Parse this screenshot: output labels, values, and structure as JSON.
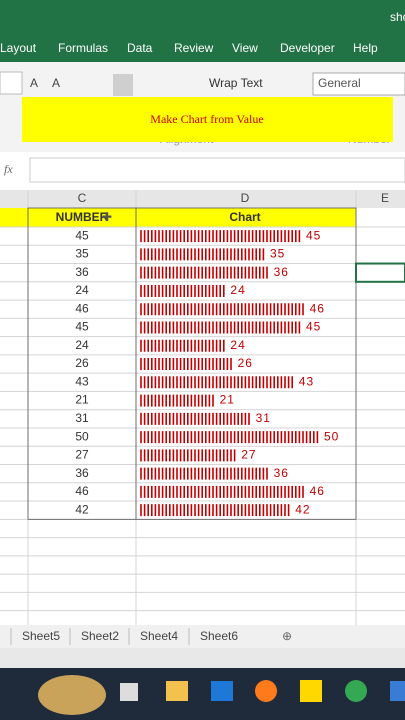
{
  "title_bar": {
    "text": "sho"
  },
  "ribbon": {
    "tabs": [
      "Layout",
      "Formulas",
      "Data",
      "Review",
      "View",
      "Developer",
      "Help"
    ],
    "wrap_text": "Wrap Text",
    "number_format": "General",
    "group_labels": [
      "Alignment",
      "Number"
    ]
  },
  "overlay_title": "Make Chart from Value",
  "formula_bar": {
    "fx": "fx"
  },
  "sheet": {
    "columns": [
      "C",
      "D",
      "E"
    ],
    "header": [
      "NUMBER",
      "Chart"
    ],
    "rows": [
      45,
      35,
      36,
      24,
      46,
      45,
      24,
      26,
      43,
      21,
      31,
      50,
      27,
      36,
      46,
      42
    ]
  },
  "sheet_tabs": [
    "Sheet5",
    "Sheet2",
    "Sheet4",
    "Sheet6"
  ]
}
